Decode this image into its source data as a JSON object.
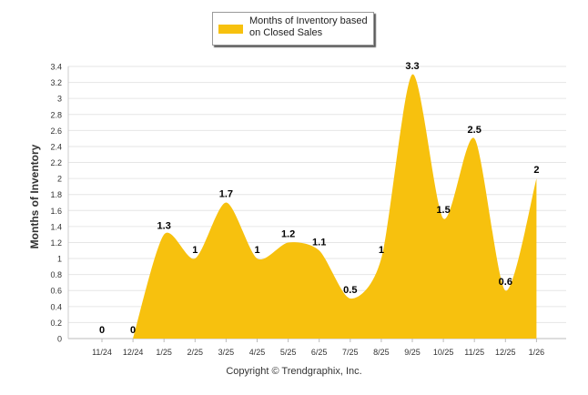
{
  "legend": {
    "label": "Months of Inventory based on Closed Sales",
    "color": "#f7c10e"
  },
  "copyright": "Copyright © Trendgraphix, Inc.",
  "chart_data": {
    "type": "area",
    "title": "",
    "xlabel": "",
    "ylabel": "Months of Inventory",
    "categories": [
      "11/24",
      "12/24",
      "1/25",
      "2/25",
      "3/25",
      "4/25",
      "5/25",
      "6/25",
      "7/25",
      "8/25",
      "9/25",
      "10/25",
      "11/25",
      "12/25",
      "1/26"
    ],
    "series": [
      {
        "name": "Months of Inventory based on Closed Sales",
        "values": [
          null,
          0,
          1.3,
          1,
          1.7,
          1,
          1.2,
          1.1,
          0.5,
          1,
          3.3,
          1.5,
          2.5,
          0.6,
          2
        ]
      }
    ],
    "data_labels": [
      "0",
      "0",
      "1.3",
      "1",
      "1.7",
      "1",
      "1.2",
      "1.1",
      "0.5",
      "1",
      "3.3",
      "1.5",
      "2.5",
      "0.6",
      "2"
    ],
    "yticks": [
      "0",
      "0.2",
      "0.4",
      "0.6",
      "0.8",
      "1",
      "1.2",
      "1.4",
      "1.6",
      "1.8",
      "2",
      "2.2",
      "2.4",
      "2.6",
      "2.8",
      "3",
      "3.2",
      "3.4"
    ],
    "ylim": [
      0,
      3.4
    ],
    "grid": true,
    "color": "#f7c10e"
  }
}
